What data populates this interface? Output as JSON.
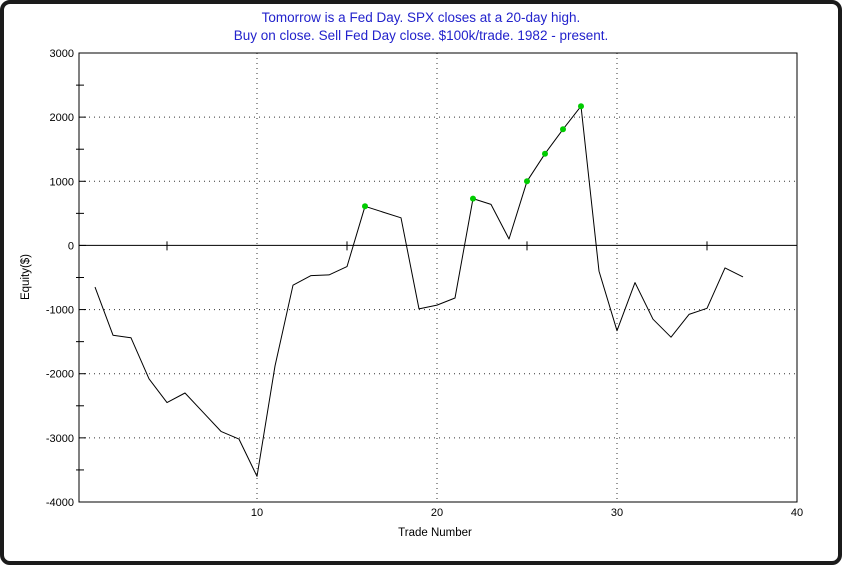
{
  "window": {
    "background": "#ffffff",
    "border_color": "#1b1b1b"
  },
  "title": {
    "line1": "Tomorrow is a Fed Day. SPX closes at a 20-day high.",
    "line2": "Buy on close. Sell Fed Day close. $100k/trade. 1982 - present.",
    "color": "#2222cc"
  },
  "chart_data": {
    "type": "line",
    "title": "Tomorrow is a Fed Day. SPX closes at a 20-day high. Buy on close. Sell Fed Day close. $100k/trade. 1982 - present.",
    "xlabel": "Trade Number",
    "ylabel": "Equity($)",
    "xlim": [
      0,
      40
    ],
    "ylim": [
      -4000,
      3000
    ],
    "x_tick_labels": [
      "10",
      "20",
      "30",
      "40"
    ],
    "x_ticks_labeled": [
      10,
      20,
      30,
      40
    ],
    "x_ticks_minor": [
      5,
      15,
      25,
      35
    ],
    "y_tick_labels": [
      "3000",
      "2000",
      "1000",
      "0",
      "-1000",
      "-2000",
      "-3000",
      "-4000"
    ],
    "y_ticks_labeled": [
      3000,
      2000,
      1000,
      0,
      -1000,
      -2000,
      -3000,
      -4000
    ],
    "y_ticks_minor": [
      2500,
      1500,
      500,
      -500,
      -1500,
      -2500,
      -3500
    ],
    "grid_x_dotted": [
      10,
      20,
      30
    ],
    "grid_y_dotted": [
      2000,
      1000,
      -1000,
      -2000,
      -3000
    ],
    "x": [
      1,
      2,
      3,
      4,
      5,
      6,
      7,
      8,
      9,
      10,
      11,
      12,
      13,
      14,
      15,
      16,
      17,
      18,
      19,
      20,
      21,
      22,
      23,
      24,
      25,
      26,
      27,
      28,
      29,
      30,
      31,
      32,
      33,
      34,
      35,
      36,
      37
    ],
    "values": [
      -650,
      -1400,
      -1440,
      -2080,
      -2450,
      -2300,
      -2600,
      -2900,
      -3020,
      -3600,
      -1880,
      -620,
      -470,
      -460,
      -330,
      610,
      520,
      430,
      -990,
      -930,
      -820,
      730,
      640,
      100,
      1000,
      1430,
      1810,
      2170,
      -400,
      -1330,
      -580,
      -1150,
      -1430,
      -1075,
      -980,
      -350,
      -490
    ],
    "highlight_trades": [
      16,
      22,
      25,
      26,
      27,
      28
    ],
    "highlight_values": [
      610,
      730,
      1000,
      1430,
      1810,
      2170
    ],
    "line_color": "#000000",
    "highlight_color": "#00cc00",
    "grid_color": "#333333",
    "legend": "none"
  }
}
